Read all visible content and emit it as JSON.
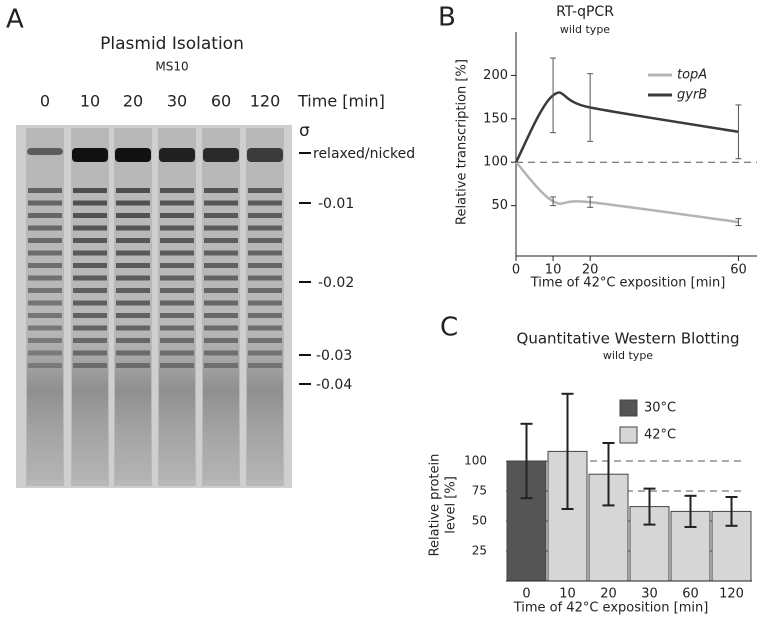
{
  "gel": {
    "letter": "A",
    "title": "Plasmid Isolation",
    "subtitle": "MS10",
    "lanes": [
      "0",
      "10",
      "20",
      "30",
      "60",
      "120"
    ],
    "lanes_label": "Time [min]",
    "sigma": "σ",
    "markers": [
      "relaxed/nicked",
      "-0.01",
      "-0.02",
      "-0.03",
      "-0.04"
    ]
  },
  "chart_data": [
    {
      "type": "line",
      "letter": "B",
      "title": "RT-qPCR",
      "subtitle": "wild type",
      "xlabel": "Time of 42°C exposition [min]",
      "ylabel": "Relative transcription [%]",
      "x": [
        0,
        10,
        20,
        60
      ],
      "series": [
        {
          "name": "topA",
          "color": "#b4b4b4",
          "values": [
            100,
            55,
            54,
            31
          ],
          "errors": [
            null,
            5,
            6,
            4
          ]
        },
        {
          "name": "gyrB",
          "color": "#3a3a3a",
          "values": [
            100,
            177,
            163,
            135
          ],
          "errors": [
            null,
            43,
            39,
            31
          ]
        }
      ],
      "xlim": [
        0,
        65
      ],
      "xticks": [
        0,
        10,
        20,
        60
      ],
      "ylim": [
        0,
        250
      ],
      "yticks": [
        50,
        100,
        150,
        200
      ],
      "reference_line": 100,
      "legend": "upper right"
    },
    {
      "type": "bar",
      "letter": "C",
      "title": "Quantitative Western Blotting",
      "subtitle": "wild type",
      "xlabel": "Time of 42°C exposition  [min]",
      "ylabel": [
        "Relative protein",
        "level [%]"
      ],
      "categories": [
        "0",
        "10",
        "20",
        "30",
        "60",
        "120"
      ],
      "series": [
        {
          "name": "30°C",
          "color": "#555555",
          "values": [
            100,
            null,
            null,
            null,
            null,
            null
          ],
          "errors": [
            31,
            null,
            null,
            null,
            null,
            null
          ]
        },
        {
          "name": "42°C",
          "color": "#d6d6d6",
          "values": [
            null,
            108,
            89,
            62,
            58,
            58
          ],
          "errors": [
            null,
            48,
            26,
            15,
            13,
            12
          ]
        }
      ],
      "ylim": [
        0,
        160
      ],
      "yticks": [
        25,
        50,
        75,
        100
      ],
      "grid": "dashed",
      "legend": "upper right"
    }
  ]
}
